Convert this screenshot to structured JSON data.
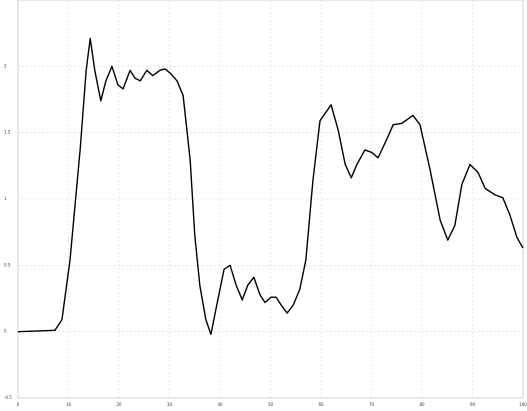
{
  "chart_data": {
    "type": "line",
    "x": [
      0,
      7.3,
      8.7,
      10.3,
      12.3,
      13.5,
      14.3,
      15.2,
      16.4,
      17.4,
      18.6,
      19.8,
      20.8,
      22.2,
      23.2,
      24.2,
      25.5,
      26.7,
      28.1,
      29.1,
      30.1,
      31.5,
      32.7,
      34.1,
      35.0,
      36.0,
      37.2,
      38.2,
      39.2,
      40.8,
      42.0,
      43.2,
      44.4,
      45.5,
      46.7,
      47.9,
      48.9,
      50.1,
      51.1,
      52.3,
      53.3,
      54.5,
      55.8,
      57.0,
      58.4,
      59.8,
      62.0,
      63.4,
      64.8,
      66.0,
      67.1,
      68.7,
      70.1,
      71.3,
      72.9,
      74.3,
      76.0,
      78.2,
      79.6,
      81.6,
      83.6,
      85.1,
      86.5,
      87.9,
      89.5,
      91.1,
      92.5,
      94.5,
      96.0,
      97.4,
      98.8,
      100
    ],
    "series": [
      {
        "color": "#000000",
        "values": [
          0,
          0.01,
          0.09,
          0.54,
          1.37,
          1.97,
          2.21,
          1.97,
          1.74,
          1.89,
          2.0,
          1.86,
          1.83,
          1.97,
          1.91,
          1.89,
          1.97,
          1.93,
          1.97,
          1.98,
          1.95,
          1.89,
          1.78,
          1.29,
          0.73,
          0.35,
          0.09,
          -0.02,
          0.17,
          0.47,
          0.5,
          0.35,
          0.24,
          0.35,
          0.41,
          0.28,
          0.22,
          0.26,
          0.26,
          0.19,
          0.14,
          0.2,
          0.32,
          0.54,
          1.14,
          1.59,
          1.71,
          1.52,
          1.26,
          1.16,
          1.26,
          1.37,
          1.35,
          1.31,
          1.44,
          1.56,
          1.57,
          1.63,
          1.56,
          1.22,
          0.84,
          0.69,
          0.8,
          1.11,
          1.26,
          1.2,
          1.08,
          1.03,
          1.01,
          0.88,
          0.71,
          0.63
        ]
      }
    ],
    "xlim": [
      0,
      100
    ],
    "xticks": [
      0,
      10,
      20,
      30,
      40,
      50,
      60,
      70,
      80,
      90,
      100
    ],
    "ylim": [
      -0.5,
      2.5
    ],
    "yticks": [
      -0.5,
      0,
      0.5,
      1,
      1.5,
      2
    ],
    "grid": true
  }
}
